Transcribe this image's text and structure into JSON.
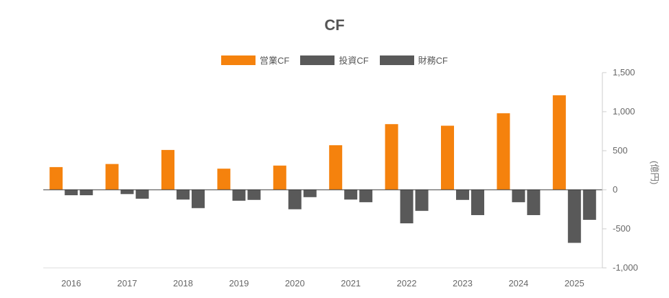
{
  "chart_data": {
    "type": "bar",
    "title": "CF",
    "categories": [
      "2016",
      "2017",
      "2018",
      "2019",
      "2020",
      "2021",
      "2022",
      "2023",
      "2024",
      "2025"
    ],
    "series": [
      {
        "name": "営業CF",
        "color": "#F5820D",
        "values": [
          290,
          330,
          510,
          270,
          310,
          570,
          840,
          820,
          980,
          1210
        ]
      },
      {
        "name": "投資CF",
        "color": "#595959",
        "values": [
          -70,
          -55,
          -125,
          -140,
          -250,
          -125,
          -430,
          -130,
          -160,
          -680
        ]
      },
      {
        "name": "財務CF",
        "color": "#595959",
        "values": [
          -70,
          -115,
          -235,
          -130,
          -95,
          -160,
          -270,
          -325,
          -325,
          -385
        ]
      }
    ],
    "ylabel": "(億円)",
    "ylim": [
      -1000,
      1500
    ],
    "yticks": [
      1500,
      1000,
      500,
      0,
      -500,
      -1000
    ],
    "ytick_labels": [
      "1,500",
      "1,000",
      "500",
      "0",
      "-500",
      "-1,000"
    ],
    "y_axis_position": "right",
    "legend_position": "top-center",
    "grid": false
  }
}
